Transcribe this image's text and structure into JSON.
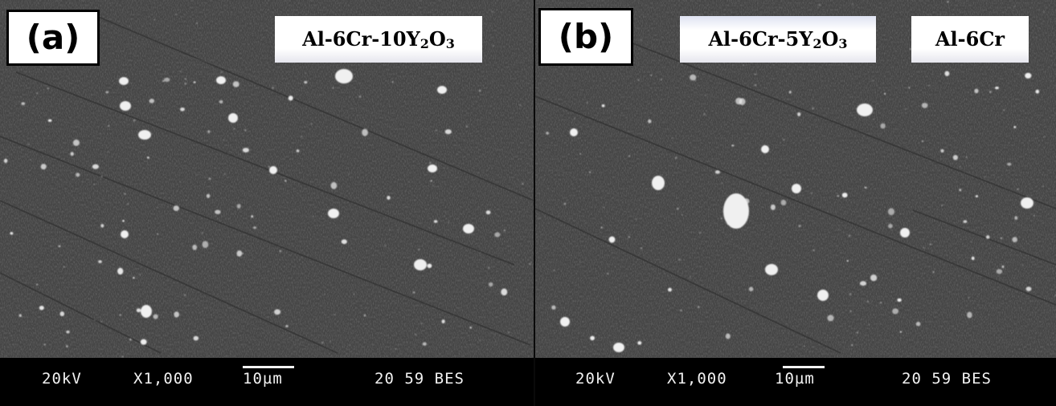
{
  "panels": [
    {
      "label": "(a)",
      "samples": [
        {
          "prefix": "Al-6Cr-10Y",
          "sub1": "2",
          "mid": "O",
          "sub2": "3"
        }
      ],
      "databar": {
        "voltage": "20kV",
        "magnification": "X1,000",
        "scale": "10µm",
        "info": "20 59 BES"
      }
    },
    {
      "label": "(b)",
      "samples": [
        {
          "prefix": "Al-6Cr-5Y",
          "sub1": "2",
          "mid": "O",
          "sub2": "3"
        },
        {
          "prefix": "Al-6Cr",
          "sub1": "",
          "mid": "",
          "sub2": ""
        }
      ],
      "databar": {
        "voltage": "20kV",
        "magnification": "X1,000",
        "scale": "10µm",
        "info": "20 59 BES"
      }
    }
  ],
  "colors": {
    "matrix": "#454545",
    "particles": "#f0f0f0",
    "databar_background": "#000000",
    "databar_text": "#f2f2f2"
  }
}
